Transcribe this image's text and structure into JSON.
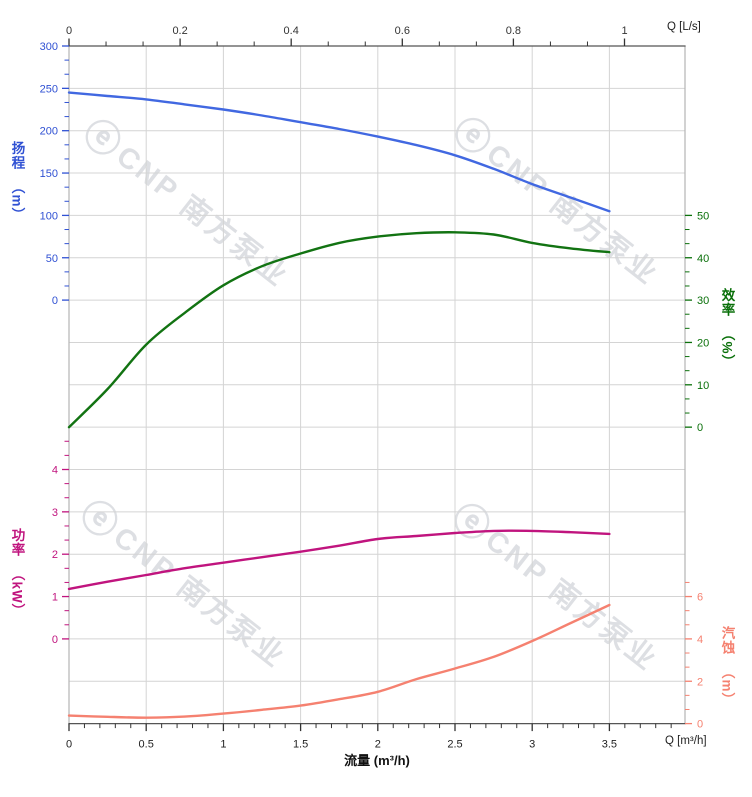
{
  "watermark": {
    "logo": "ⓔ",
    "brand": "CNP 南方泵业"
  },
  "labels": {
    "top_axis_unit": "Q [L/s]",
    "bottom_axis_unit": "Q [m³/h]",
    "xlabel": "流量 (m³/h)",
    "head_title": "扬程",
    "head_unit": "（m）",
    "eff_title": "效率",
    "eff_unit": "（%）",
    "power_title": "功率",
    "power_unit": "（kW）",
    "npsh_title": "汽蚀",
    "npsh_unit": "（m）"
  },
  "chart_data": {
    "type": "line",
    "title": "",
    "x_axis_bottom": {
      "label": "流量 (m³/h)",
      "unit": "m³/h",
      "ticks": [
        0,
        0.5,
        1,
        1.5,
        2,
        2.5,
        3,
        3.5
      ],
      "minor_step": 0.1,
      "range": [
        0,
        3.99
      ]
    },
    "x_axis_top": {
      "unit": "L/s",
      "ticks": [
        0,
        0.2,
        0.4,
        0.6,
        0.8,
        1
      ],
      "range": [
        0,
        1.109
      ],
      "note": "1 L/s = 3.6 m³/h"
    },
    "y_axes": {
      "head": {
        "label": "扬程",
        "unit": "m",
        "side": "left",
        "color": "#3051d3",
        "ticks": [
          300,
          250,
          200,
          150,
          100,
          50,
          0
        ]
      },
      "eff": {
        "label": "效率",
        "unit": "%",
        "side": "right",
        "color": "#0a700a",
        "ticks": [
          50,
          40,
          30,
          20,
          10,
          0
        ]
      },
      "power": {
        "label": "功率",
        "unit": "kW",
        "side": "left",
        "color": "#c0147e",
        "ticks": [
          4,
          3,
          2,
          1,
          0
        ]
      },
      "npsh": {
        "label": "汽蚀",
        "unit": "m",
        "side": "right",
        "color": "#f58170",
        "ticks": [
          6,
          4,
          2,
          0
        ]
      }
    },
    "grid": true,
    "x_m3h": [
      0,
      0.25,
      0.5,
      0.75,
      1.0,
      1.25,
      1.5,
      1.75,
      2.0,
      2.25,
      2.5,
      2.75,
      3.0,
      3.25,
      3.5
    ],
    "series": [
      {
        "name": "扬程 (head)",
        "axis": "head",
        "color": "#4168e1",
        "values": [
          245,
          241,
          237,
          231,
          225,
          218,
          210,
          202,
          193,
          183,
          171,
          155,
          137,
          121,
          105
        ]
      },
      {
        "name": "效率 (efficiency)",
        "axis": "eff",
        "color": "#127312",
        "values": [
          0,
          9,
          19.5,
          27,
          33.5,
          38,
          41,
          43.5,
          45,
          45.8,
          46,
          45.5,
          43.5,
          42.2,
          41.3
        ]
      },
      {
        "name": "功率 (power)",
        "axis": "power",
        "color": "#c0147e",
        "values": [
          1.18,
          1.35,
          1.51,
          1.67,
          1.8,
          1.93,
          2.06,
          2.2,
          2.36,
          2.43,
          2.5,
          2.55,
          2.55,
          2.52,
          2.48
        ]
      },
      {
        "name": "汽蚀 (NPSH)",
        "axis": "npsh",
        "color": "#f58170",
        "values": [
          0.38,
          0.32,
          0.28,
          0.33,
          0.47,
          0.65,
          0.85,
          1.15,
          1.5,
          2.1,
          2.6,
          3.15,
          3.9,
          4.75,
          5.6
        ]
      }
    ]
  }
}
